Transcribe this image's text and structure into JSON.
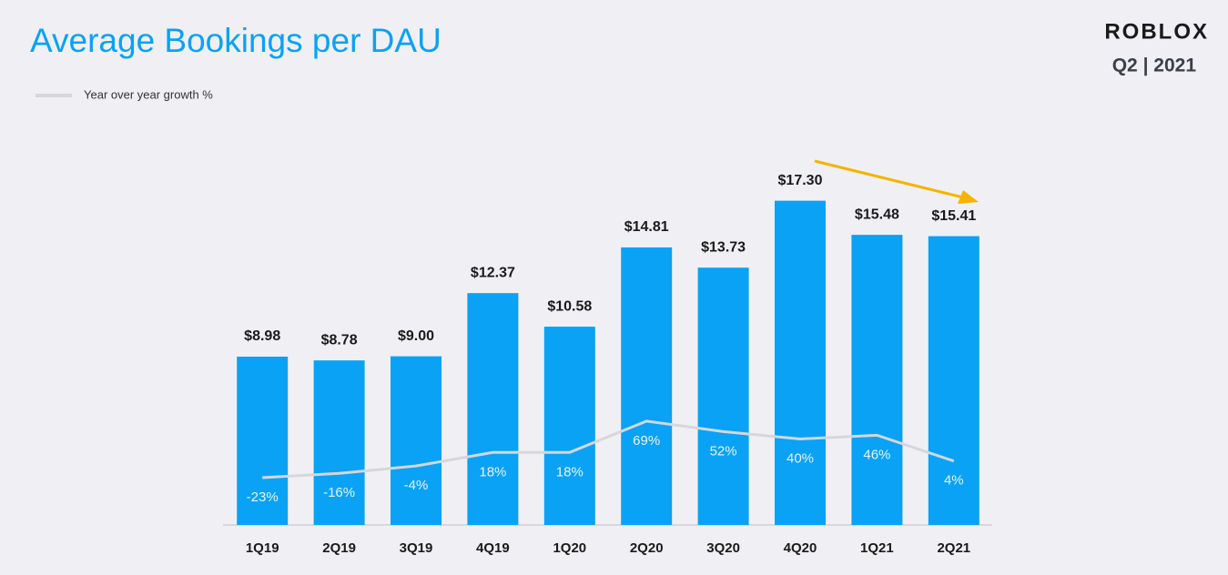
{
  "brand": "ROBLOX",
  "period": "Q2 | 2021",
  "chart_data": {
    "type": "bar",
    "title": "Average Bookings per DAU",
    "categories": [
      "1Q19",
      "2Q19",
      "3Q19",
      "4Q19",
      "1Q20",
      "2Q20",
      "3Q20",
      "4Q20",
      "1Q21",
      "2Q21"
    ],
    "series": [
      {
        "color": "#0aa2f5",
        "values": [
          8.98,
          8.78,
          9.0,
          12.37,
          10.58,
          14.81,
          13.73,
          17.3,
          15.48,
          15.41
        ],
        "value_labels": [
          "$8.98",
          "$8.78",
          "$9.00",
          "$12.37",
          "$10.58",
          "$14.81",
          "$13.73",
          "$17.30",
          "$15.48",
          "$15.41"
        ]
      },
      {
        "name": "Year over year growth %",
        "type": "line",
        "axis": "y2",
        "color": "#d6d6dc",
        "values": [
          -23,
          -16,
          -4,
          18,
          18,
          69,
          52,
          40,
          46,
          4
        ],
        "value_labels": [
          "-23%",
          "-16%",
          "-4%",
          "18%",
          "18%",
          "69%",
          "52%",
          "40%",
          "46%",
          "4%"
        ]
      }
    ],
    "ylim": [
      0,
      20
    ],
    "y2lim": [
      -100,
      510
    ]
  }
}
